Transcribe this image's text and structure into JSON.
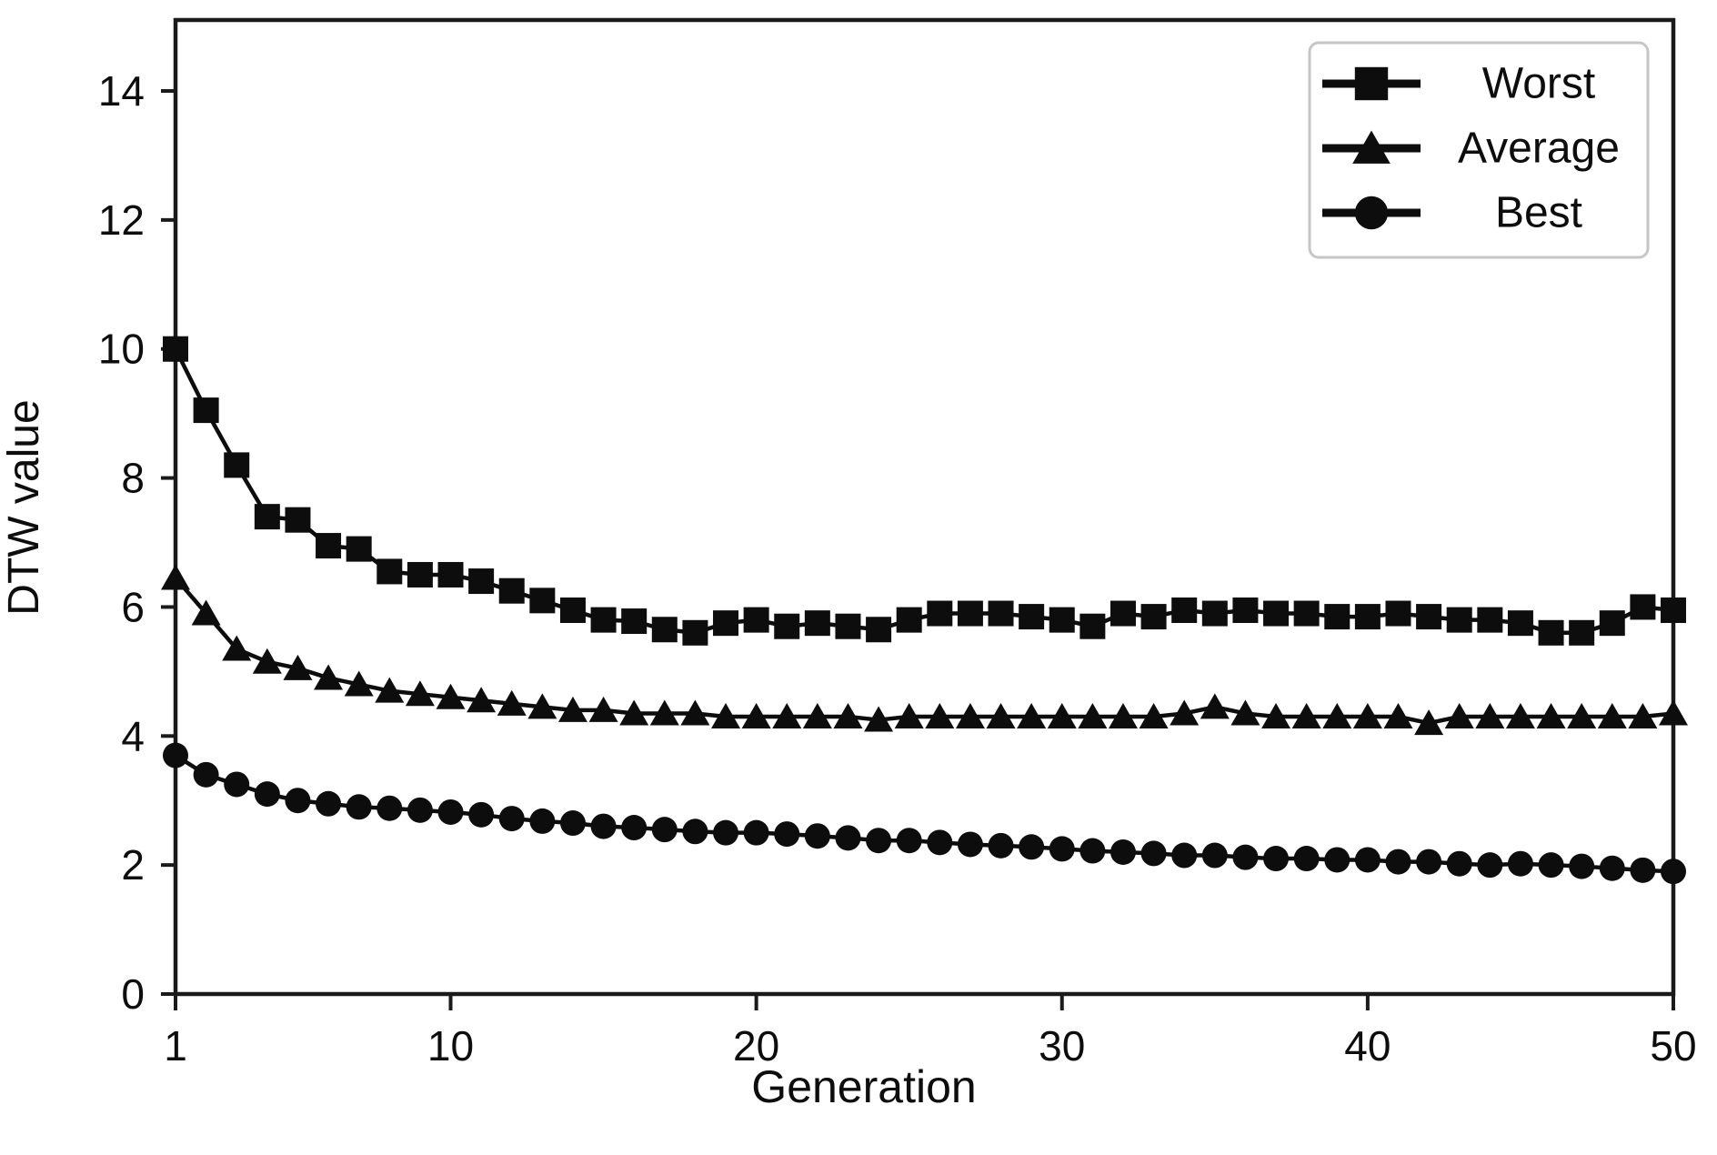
{
  "figure": {
    "background": "#ffffff",
    "ink_color": "#0d0d0d",
    "spine_color": "#1a1a1a",
    "legend_border_color": "#c6c6c6"
  },
  "chart_data": {
    "type": "line",
    "title": "",
    "xlabel": "Generation",
    "ylabel": "DTW value",
    "xlim": [
      1,
      50
    ],
    "ylim": [
      0,
      15.1
    ],
    "x_ticks": [
      1,
      10,
      20,
      30,
      40,
      50
    ],
    "y_ticks": [
      0,
      2,
      4,
      6,
      8,
      10,
      12,
      14
    ],
    "grid": false,
    "legend_position": "upper right",
    "x": [
      1,
      2,
      3,
      4,
      5,
      6,
      7,
      8,
      9,
      10,
      11,
      12,
      13,
      14,
      15,
      16,
      17,
      18,
      19,
      20,
      21,
      22,
      23,
      24,
      25,
      26,
      27,
      28,
      29,
      30,
      31,
      32,
      33,
      34,
      35,
      36,
      37,
      38,
      39,
      40,
      41,
      42,
      43,
      44,
      45,
      46,
      47,
      48,
      49,
      50
    ],
    "series": [
      {
        "name": "Worst",
        "marker": "square",
        "color": "#0d0d0d",
        "values": [
          10.0,
          9.05,
          8.2,
          7.4,
          7.35,
          6.95,
          6.9,
          6.55,
          6.5,
          6.5,
          6.4,
          6.25,
          6.1,
          5.95,
          5.8,
          5.78,
          5.65,
          5.6,
          5.75,
          5.8,
          5.7,
          5.75,
          5.7,
          5.65,
          5.8,
          5.9,
          5.9,
          5.9,
          5.85,
          5.8,
          5.7,
          5.9,
          5.85,
          5.95,
          5.9,
          5.95,
          5.9,
          5.9,
          5.85,
          5.85,
          5.9,
          5.85,
          5.8,
          5.8,
          5.75,
          5.6,
          5.6,
          5.75,
          6.0,
          5.95
        ]
      },
      {
        "name": "Average",
        "marker": "triangle",
        "color": "#0d0d0d",
        "values": [
          6.45,
          5.9,
          5.35,
          5.15,
          5.05,
          4.9,
          4.8,
          4.7,
          4.65,
          4.6,
          4.55,
          4.5,
          4.45,
          4.4,
          4.4,
          4.35,
          4.35,
          4.35,
          4.3,
          4.3,
          4.3,
          4.3,
          4.3,
          4.25,
          4.3,
          4.3,
          4.3,
          4.3,
          4.3,
          4.3,
          4.3,
          4.3,
          4.3,
          4.35,
          4.45,
          4.35,
          4.3,
          4.3,
          4.3,
          4.3,
          4.3,
          4.2,
          4.3,
          4.3,
          4.3,
          4.3,
          4.3,
          4.3,
          4.3,
          4.35
        ]
      },
      {
        "name": "Best",
        "marker": "circle",
        "color": "#0d0d0d",
        "values": [
          3.7,
          3.4,
          3.25,
          3.1,
          3.0,
          2.95,
          2.9,
          2.88,
          2.85,
          2.82,
          2.78,
          2.72,
          2.68,
          2.65,
          2.6,
          2.58,
          2.55,
          2.52,
          2.5,
          2.5,
          2.48,
          2.45,
          2.42,
          2.38,
          2.38,
          2.35,
          2.32,
          2.3,
          2.28,
          2.25,
          2.22,
          2.2,
          2.18,
          2.15,
          2.15,
          2.12,
          2.1,
          2.1,
          2.08,
          2.08,
          2.05,
          2.05,
          2.02,
          2.0,
          2.02,
          2.0,
          1.98,
          1.95,
          1.92,
          1.9
        ]
      }
    ]
  }
}
